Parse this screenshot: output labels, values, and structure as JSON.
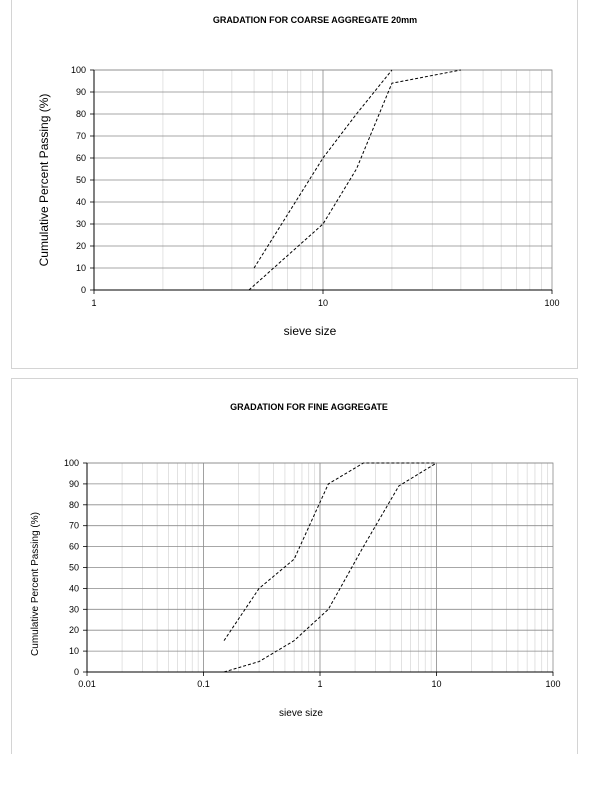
{
  "chart_data": [
    {
      "type": "line",
      "title": "GRADATION FOR COARSE AGGREGATE 20mm",
      "xlabel": "sieve size",
      "ylabel": "Cumulative Percent Passing (%)",
      "xscale": "log",
      "xlim": [
        1,
        100
      ],
      "ylim": [
        0,
        100
      ],
      "x_ticks": [
        "1",
        "10",
        "100"
      ],
      "y_ticks": [
        "0",
        "10",
        "20",
        "30",
        "40",
        "50",
        "60",
        "70",
        "80",
        "90",
        "100"
      ],
      "grid": true,
      "line_style": "dashed",
      "series": [
        {
          "x": [
            5,
            10,
            14,
            20
          ],
          "y": [
            10,
            60,
            80,
            100
          ]
        },
        {
          "x": [
            4.75,
            10,
            14,
            20,
            40
          ],
          "y": [
            0,
            30,
            55,
            94,
            100
          ]
        }
      ]
    },
    {
      "type": "line",
      "title": "GRADATION FOR FINE AGGREGATE",
      "xlabel": "sieve size",
      "ylabel": "Cumulative Percent Passing (%)",
      "xscale": "log",
      "xlim": [
        0.01,
        100
      ],
      "ylim": [
        0,
        100
      ],
      "x_ticks": [
        "0.01",
        "0.1",
        "1",
        "10",
        "100"
      ],
      "y_ticks": [
        "0",
        "10",
        "20",
        "30",
        "40",
        "50",
        "60",
        "70",
        "80",
        "90",
        "100"
      ],
      "grid": true,
      "line_style": "dashed",
      "series": [
        {
          "x": [
            0.15,
            0.3,
            0.6,
            1.18,
            2.36,
            4.75,
            10
          ],
          "y": [
            15,
            40,
            54,
            90,
            100,
            100,
            100
          ]
        },
        {
          "x": [
            0.15,
            0.3,
            0.6,
            1.18,
            2.36,
            4.75,
            10
          ],
          "y": [
            0,
            5,
            15,
            30,
            60,
            89,
            100
          ]
        }
      ]
    }
  ]
}
